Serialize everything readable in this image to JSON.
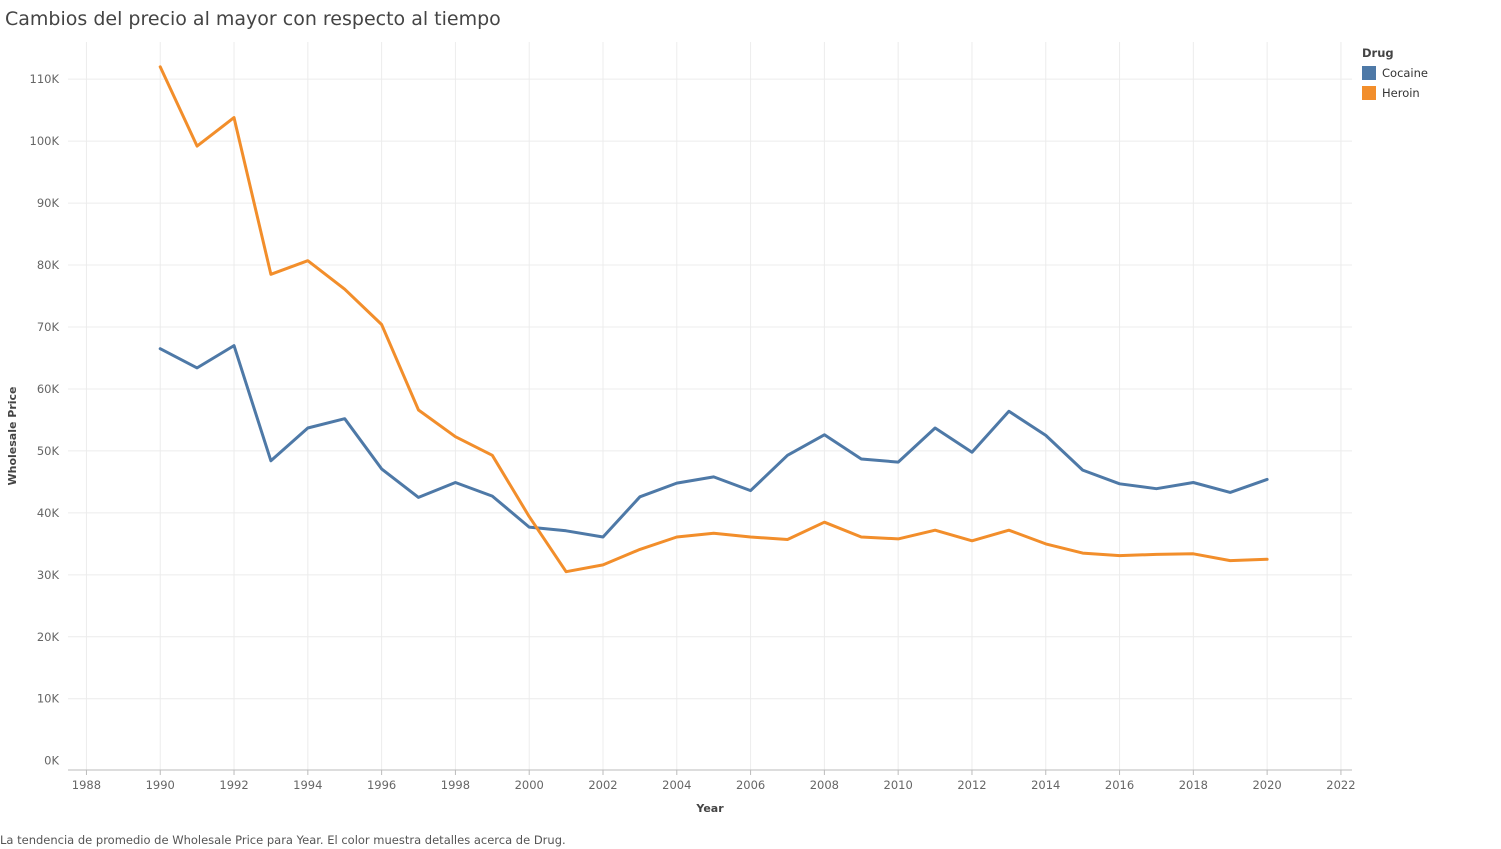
{
  "title": "Cambios del precio al mayor con respecto al tiempo",
  "caption": "La tendencia de promedio de Wholesale Price para Year. El color muestra detalles acerca de Drug.",
  "legend": {
    "title": "Drug",
    "items": [
      {
        "label": "Cocaine",
        "color": "#4e79a7"
      },
      {
        "label": "Heroin",
        "color": "#f28e2b"
      }
    ]
  },
  "chart_data": {
    "type": "line",
    "xlabel": "Year",
    "ylabel": "Wholesale Price",
    "xlim": [
      1987.5,
      2022.3
    ],
    "ylim": [
      -1500,
      116000
    ],
    "grid": true,
    "legend_position": "top-right",
    "x_ticks": [
      1988,
      1990,
      1992,
      1994,
      1996,
      1998,
      2000,
      2002,
      2004,
      2006,
      2008,
      2010,
      2012,
      2014,
      2016,
      2018,
      2020,
      2022
    ],
    "x_tick_labels": [
      "1988",
      "1990",
      "1992",
      "1994",
      "1996",
      "1998",
      "2000",
      "2002",
      "2004",
      "2006",
      "2008",
      "2010",
      "2012",
      "2014",
      "2016",
      "2018",
      "2020",
      "2022"
    ],
    "y_ticks": [
      0,
      10000,
      20000,
      30000,
      40000,
      50000,
      60000,
      70000,
      80000,
      90000,
      100000,
      110000
    ],
    "y_tick_labels": [
      "0K",
      "10K",
      "20K",
      "30K",
      "40K",
      "50K",
      "60K",
      "70K",
      "80K",
      "90K",
      "100K",
      "110K"
    ],
    "x": [
      1990,
      1991,
      1992,
      1993,
      1994,
      1995,
      1996,
      1997,
      1998,
      1999,
      2000,
      2001,
      2002,
      2003,
      2004,
      2005,
      2006,
      2007,
      2008,
      2009,
      2010,
      2011,
      2012,
      2013,
      2014,
      2015,
      2016,
      2017,
      2018,
      2019,
      2020
    ],
    "series": [
      {
        "name": "Cocaine",
        "color": "#4e79a7",
        "values": [
          66500,
          63400,
          67000,
          48400,
          53700,
          55200,
          47100,
          42500,
          44900,
          42700,
          37700,
          37100,
          36100,
          42600,
          44800,
          45800,
          43600,
          49300,
          52600,
          48700,
          48200,
          53700,
          49800,
          56400,
          52500,
          46900,
          44700,
          43900,
          44900,
          43300,
          45400
        ]
      },
      {
        "name": "Heroin",
        "color": "#f28e2b",
        "values": [
          112000,
          99200,
          103800,
          78500,
          80700,
          76100,
          70400,
          56600,
          52300,
          49300,
          39400,
          30500,
          31600,
          34100,
          36100,
          36700,
          36100,
          35700,
          38500,
          36100,
          35800,
          37200,
          35500,
          37200,
          35000,
          33500,
          33100,
          33300,
          33400,
          32300,
          32500
        ]
      }
    ]
  }
}
